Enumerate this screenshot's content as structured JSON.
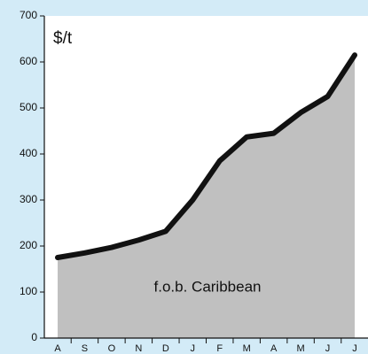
{
  "chart_data": {
    "type": "area",
    "y_label": "$/t",
    "annotation": "f.o.b. Caribbean",
    "categories": [
      "A",
      "S",
      "O",
      "N",
      "D",
      "J",
      "F",
      "M",
      "A",
      "M",
      "J",
      "J"
    ],
    "values": [
      175,
      185,
      197,
      213,
      232,
      300,
      385,
      437,
      445,
      490,
      525,
      615
    ],
    "fill_color": "#c0c0c0",
    "line_color": "#111111",
    "ylim": [
      0,
      700
    ],
    "yticks": [
      0,
      100,
      200,
      300,
      400,
      500,
      600,
      700
    ],
    "grid": false
  }
}
